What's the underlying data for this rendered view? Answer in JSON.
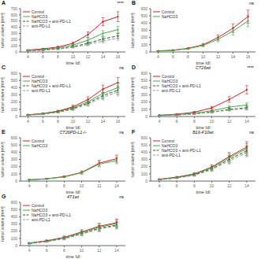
{
  "chart_data": [
    {
      "type": "line",
      "annotations": [
        "A",
        "****"
      ],
      "xlabel": "time [d]",
      "ylabel": "tumor volume [mm³]",
      "legend": "upper left",
      "grid": false,
      "x": [
        4,
        6,
        8,
        10,
        12,
        14,
        16
      ],
      "xlim": [
        3,
        17
      ],
      "xticks": [
        4,
        6,
        8,
        10,
        12,
        14,
        16
      ],
      "ylim": [
        0,
        700
      ],
      "yticks": [
        0,
        100,
        200,
        300,
        400,
        500,
        600,
        700
      ],
      "series": [
        {
          "name": "Control",
          "color": "#cc2222",
          "line_style": "solid",
          "marker": "circle",
          "values": [
            30,
            50,
            80,
            140,
            280,
            490,
            570
          ],
          "yerr": [
            5,
            8,
            12,
            22,
            45,
            65,
            80
          ]
        },
        {
          "name": "NaHCO3",
          "color": "#44aa44",
          "line_style": "solid",
          "marker": "circle",
          "values": [
            25,
            40,
            65,
            110,
            190,
            300,
            360
          ],
          "yerr": [
            4,
            6,
            10,
            18,
            30,
            45,
            55
          ]
        },
        {
          "name": "NaHCO3 + anti-PD-L1",
          "color": "#226622",
          "line_style": "dashed",
          "marker": "circle",
          "values": [
            20,
            32,
            52,
            85,
            140,
            210,
            260
          ],
          "yerr": [
            3,
            5,
            8,
            13,
            22,
            32,
            42
          ]
        },
        {
          "name": "anti-PD-L1",
          "color": "#999999",
          "line_style": "dashed",
          "marker": "circle",
          "values": [
            18,
            28,
            45,
            75,
            120,
            175,
            225
          ],
          "yerr": [
            3,
            4,
            7,
            12,
            20,
            28,
            36
          ]
        }
      ]
    },
    {
      "type": "line",
      "annotations": [
        "B",
        "ns"
      ],
      "xlabel": "time [d]",
      "ylabel": "tumor volume [mm³]",
      "legend": "upper left",
      "grid": false,
      "x": [
        4,
        6,
        8,
        10,
        12,
        14,
        16
      ],
      "xlim": [
        3,
        17
      ],
      "xticks": [
        4,
        6,
        8,
        10,
        12,
        14,
        16
      ],
      "ylim": [
        0,
        600
      ],
      "yticks": [
        0,
        100,
        200,
        300,
        400,
        500,
        600
      ],
      "series": [
        {
          "name": "Control",
          "color": "#cc2222",
          "line_style": "solid",
          "marker": "circle",
          "values": [
            15,
            25,
            50,
            100,
            200,
            330,
            490
          ],
          "yerr": [
            3,
            5,
            9,
            18,
            38,
            60,
            90
          ]
        },
        {
          "name": "NaHCO3",
          "color": "#44aa44",
          "line_style": "solid",
          "marker": "circle",
          "values": [
            12,
            22,
            45,
            90,
            175,
            290,
            430
          ],
          "yerr": [
            3,
            4,
            8,
            16,
            34,
            55,
            80
          ]
        }
      ]
    },
    {
      "type": "line",
      "annotations": [
        "C",
        "ns"
      ],
      "xlabel": "time [d]",
      "ylabel": "tumor volume [mm³]",
      "legend": "upper left",
      "grid": false,
      "x": [
        4,
        6,
        8,
        10,
        12,
        14,
        16
      ],
      "xlim": [
        3,
        17
      ],
      "xticks": [
        4,
        6,
        8,
        10,
        12,
        14,
        16
      ],
      "ylim": [
        0,
        600
      ],
      "yticks": [
        0,
        100,
        200,
        300,
        400,
        500,
        600
      ],
      "series": [
        {
          "name": "Control",
          "color": "#cc2222",
          "line_style": "solid",
          "marker": "circle",
          "values": [
            25,
            42,
            75,
            135,
            235,
            380,
            470
          ],
          "yerr": [
            5,
            7,
            12,
            22,
            38,
            55,
            70
          ]
        },
        {
          "name": "NaHCO3",
          "color": "#44aa44",
          "line_style": "solid",
          "marker": "circle",
          "values": [
            22,
            38,
            68,
            120,
            205,
            320,
            400
          ],
          "yerr": [
            4,
            6,
            10,
            20,
            33,
            48,
            62
          ]
        },
        {
          "name": "NaHCO3 + anti-PD-L1",
          "color": "#226622",
          "line_style": "dashed",
          "marker": "circle",
          "values": [
            20,
            35,
            62,
            110,
            185,
            290,
            365
          ],
          "yerr": [
            4,
            6,
            9,
            18,
            30,
            44,
            58
          ]
        },
        {
          "name": "anti-PD-L1",
          "color": "#999999",
          "line_style": "dashed",
          "marker": "circle",
          "values": [
            18,
            32,
            57,
            100,
            170,
            268,
            338
          ],
          "yerr": [
            3,
            5,
            8,
            16,
            28,
            40,
            52
          ]
        }
      ]
    },
    {
      "type": "line",
      "title": "CT26wt",
      "annotations": [
        "D",
        "****"
      ],
      "xlabel": "time [d]",
      "ylabel": "tumor volume [mm³]",
      "legend": "upper left",
      "grid": false,
      "x": [
        4,
        6,
        8,
        10,
        12,
        14
      ],
      "xlim": [
        3,
        15
      ],
      "xticks": [
        4,
        6,
        8,
        10,
        12,
        14
      ],
      "ylim": [
        0,
        600
      ],
      "yticks": [
        0,
        100,
        200,
        300,
        400,
        500,
        600
      ],
      "series": [
        {
          "name": "Control",
          "color": "#cc2222",
          "line_style": "solid",
          "marker": "circle",
          "values": [
            18,
            32,
            60,
            120,
            235,
            370
          ],
          "yerr": [
            3,
            5,
            9,
            20,
            38,
            58
          ]
        },
        {
          "name": "NaHCO3",
          "color": "#44aa44",
          "line_style": "solid",
          "marker": "circle",
          "values": [
            15,
            26,
            46,
            80,
            130,
            160
          ],
          "yerr": [
            3,
            4,
            7,
            13,
            22,
            30
          ]
        },
        {
          "name": "NaHCO3 + anti-PD-L1",
          "color": "#226622",
          "line_style": "dashed",
          "marker": "circle",
          "values": [
            13,
            22,
            38,
            62,
            98,
            120
          ],
          "yerr": [
            2,
            4,
            6,
            10,
            16,
            22
          ]
        },
        {
          "name": "anti-PD-L1",
          "color": "#999999",
          "line_style": "dashed",
          "marker": "circle",
          "values": [
            12,
            20,
            35,
            58,
            90,
            110
          ],
          "yerr": [
            2,
            3,
            5,
            9,
            14,
            20
          ]
        }
      ]
    },
    {
      "type": "line",
      "title": "CT26PD-L1-/-",
      "annotations": [
        "E",
        "ns"
      ],
      "xlabel": "time [d]",
      "ylabel": "tumor volume [mm³]",
      "legend": "upper left",
      "grid": false,
      "x": [
        4,
        6,
        8,
        10,
        12,
        14
      ],
      "xlim": [
        3,
        15
      ],
      "xticks": [
        4,
        6,
        8,
        10,
        12,
        14
      ],
      "ylim": [
        0,
        600
      ],
      "yticks": [
        0,
        100,
        200,
        300,
        400,
        500,
        600
      ],
      "series": [
        {
          "name": "Control",
          "color": "#cc2222",
          "line_style": "solid",
          "marker": "circle",
          "values": [
            18,
            32,
            62,
            120,
            248,
            310
          ],
          "yerr": [
            3,
            5,
            10,
            20,
            40,
            50
          ]
        },
        {
          "name": "NaHCO3",
          "color": "#44aa44",
          "line_style": "solid",
          "marker": "circle",
          "values": [
            16,
            30,
            57,
            115,
            235,
            285
          ],
          "yerr": [
            3,
            5,
            9,
            18,
            38,
            46
          ]
        }
      ]
    },
    {
      "type": "line",
      "title": "B16-F10wt",
      "annotations": [
        "F",
        "ns"
      ],
      "xlabel": "time [d]",
      "ylabel": "tumor volume [mm³]",
      "legend": "upper left",
      "grid": false,
      "x": [
        4,
        6,
        8,
        10,
        12,
        14
      ],
      "xlim": [
        3,
        15
      ],
      "xticks": [
        4,
        6,
        8,
        10,
        12,
        14
      ],
      "ylim": [
        0,
        600
      ],
      "yticks": [
        0,
        100,
        200,
        300,
        400,
        500,
        600
      ],
      "series": [
        {
          "name": "Control",
          "color": "#cc2222",
          "line_style": "solid",
          "marker": "circle",
          "values": [
            25,
            55,
            100,
            195,
            340,
            470
          ],
          "yerr": [
            5,
            9,
            16,
            32,
            55,
            75
          ]
        },
        {
          "name": "NaHCO3",
          "color": "#44aa44",
          "line_style": "solid",
          "marker": "circle",
          "values": [
            22,
            50,
            92,
            183,
            322,
            450
          ],
          "yerr": [
            4,
            8,
            15,
            30,
            52,
            70
          ]
        },
        {
          "name": "NaHCO3 + anti-PD-L1",
          "color": "#226622",
          "line_style": "dashed",
          "marker": "circle",
          "values": [
            20,
            46,
            85,
            170,
            300,
            420
          ],
          "yerr": [
            4,
            7,
            13,
            28,
            48,
            65
          ]
        },
        {
          "name": "anti-PD-L1",
          "color": "#999999",
          "line_style": "dashed",
          "marker": "circle",
          "values": [
            18,
            42,
            78,
            158,
            280,
            395
          ],
          "yerr": [
            3,
            6,
            12,
            26,
            44,
            60
          ]
        }
      ]
    },
    {
      "type": "line",
      "title": "4T1wt",
      "annotations": [
        "G",
        "ns"
      ],
      "xlabel": "time [d]",
      "ylabel": "tumor volume [mm³]",
      "legend": "upper left",
      "grid": false,
      "x": [
        4,
        6,
        8,
        10,
        12,
        14
      ],
      "xlim": [
        3,
        15
      ],
      "xticks": [
        4,
        6,
        8,
        10,
        12,
        14
      ],
      "ylim": [
        0,
        600
      ],
      "yticks": [
        0,
        100,
        200,
        300,
        400,
        500,
        600
      ],
      "series": [
        {
          "name": "Control",
          "color": "#cc2222",
          "line_style": "solid",
          "marker": "circle",
          "values": [
            35,
            68,
            115,
            190,
            268,
            318
          ],
          "yerr": [
            6,
            10,
            18,
            30,
            42,
            50
          ]
        },
        {
          "name": "NaHCO3",
          "color": "#44aa44",
          "line_style": "solid",
          "marker": "circle",
          "values": [
            32,
            63,
            108,
            180,
            256,
            305
          ],
          "yerr": [
            5,
            9,
            17,
            28,
            40,
            48
          ]
        },
        {
          "name": "NaHCO3 + anti-PD-L1",
          "color": "#226622",
          "line_style": "dashed",
          "marker": "circle",
          "values": [
            29,
            58,
            100,
            168,
            240,
            285
          ],
          "yerr": [
            5,
            8,
            15,
            26,
            38,
            44
          ]
        },
        {
          "name": "anti-PD-L1",
          "color": "#999999",
          "line_style": "dashed",
          "marker": "circle",
          "values": [
            27,
            55,
            94,
            159,
            228,
            272
          ],
          "yerr": [
            4,
            7,
            14,
            24,
            36,
            42
          ]
        }
      ]
    }
  ]
}
